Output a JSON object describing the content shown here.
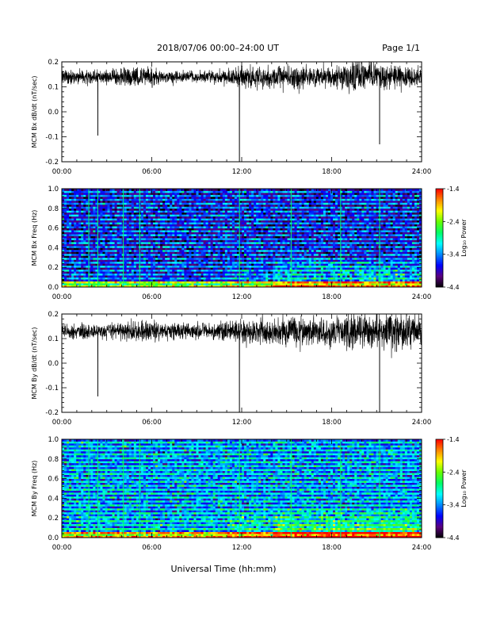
{
  "header": {
    "title": "2018/07/06  00:00–24:00 UT",
    "page": "Page 1/1"
  },
  "xaxis": {
    "label": "Universal Time (hh:mm)",
    "range_hours": [
      0,
      24
    ],
    "ticks": [
      "00:00",
      "06:00",
      "12:00",
      "18:00",
      "24:00"
    ]
  },
  "colorbar": {
    "label": "Log₁₀ Power",
    "range": [
      -4.4,
      -1.4
    ],
    "ticks": [
      "-1.4",
      "-2.4",
      "-3.4",
      "-4.4"
    ],
    "colors": [
      "#000000",
      "#5a007e",
      "#0000ff",
      "#0088ff",
      "#00ffff",
      "#00ff66",
      "#66ff00",
      "#ffff00",
      "#ff8800",
      "#ff0000"
    ]
  },
  "chart_data": [
    {
      "type": "line",
      "ylabel": "MCM Bx dB/dt (nT/sec)",
      "ylim": [
        -0.2,
        0.2
      ],
      "yticks": [
        "0.2",
        "0.1",
        "0.0",
        "-0.1",
        "-0.2"
      ],
      "baseline": 0.14,
      "noise_segments": [
        [
          0,
          0.015
        ],
        [
          2.5,
          0.012
        ],
        [
          5,
          0.02
        ],
        [
          7,
          0.012
        ],
        [
          10,
          0.012
        ],
        [
          12,
          0.02
        ],
        [
          15,
          0.025
        ],
        [
          18,
          0.02
        ],
        [
          20,
          0.03
        ],
        [
          22,
          0.025
        ],
        [
          24,
          0.02
        ]
      ],
      "spikes": [
        {
          "t": 2.4,
          "y": -0.095
        },
        {
          "t": 11.85,
          "y": -0.2
        },
        {
          "t": 21.2,
          "y": -0.13
        }
      ]
    },
    {
      "type": "heatmap",
      "ylabel": "MCM Bx Freq (Hz)",
      "ylim": [
        0.0,
        1.0
      ],
      "yticks": [
        "1.0",
        "0.8",
        "0.6",
        "0.4",
        "0.2",
        "0.0"
      ],
      "z_range": [
        -4.4,
        -1.4
      ],
      "base_power": -4.0,
      "harmonic_spacing_hz": 0.04,
      "vertical_lines_hours": [
        1.8,
        2.4,
        4.1,
        5.2,
        11.85,
        15.3,
        18.6,
        21.2
      ]
    },
    {
      "type": "line",
      "ylabel": "MCM By dB/dt (nT/sec)",
      "ylim": [
        -0.2,
        0.2
      ],
      "yticks": [
        "0.2",
        "0.1",
        "0.0",
        "-0.1",
        "-0.2"
      ],
      "baseline": 0.13,
      "noise_segments": [
        [
          0,
          0.015
        ],
        [
          2.5,
          0.015
        ],
        [
          5,
          0.02
        ],
        [
          7,
          0.018
        ],
        [
          10,
          0.015
        ],
        [
          12,
          0.025
        ],
        [
          15,
          0.03
        ],
        [
          18,
          0.03
        ],
        [
          20,
          0.035
        ],
        [
          22,
          0.04
        ],
        [
          24,
          0.03
        ]
      ],
      "spikes": [
        {
          "t": 2.4,
          "y": -0.135
        },
        {
          "t": 11.85,
          "y": -0.2
        },
        {
          "t": 21.2,
          "y": -0.2
        }
      ]
    },
    {
      "type": "heatmap",
      "ylabel": "MCM By Freq (Hz)",
      "ylim": [
        0.0,
        1.0
      ],
      "yticks": [
        "1.0",
        "0.8",
        "0.6",
        "0.4",
        "0.2",
        "0.0"
      ],
      "z_range": [
        -4.4,
        -1.4
      ],
      "base_power": -3.6,
      "harmonic_spacing_hz": 0.04,
      "vertical_lines_hours": [
        1.8,
        2.4,
        4.1,
        5.2,
        11.85,
        15.3,
        18.6,
        21.2
      ]
    }
  ]
}
